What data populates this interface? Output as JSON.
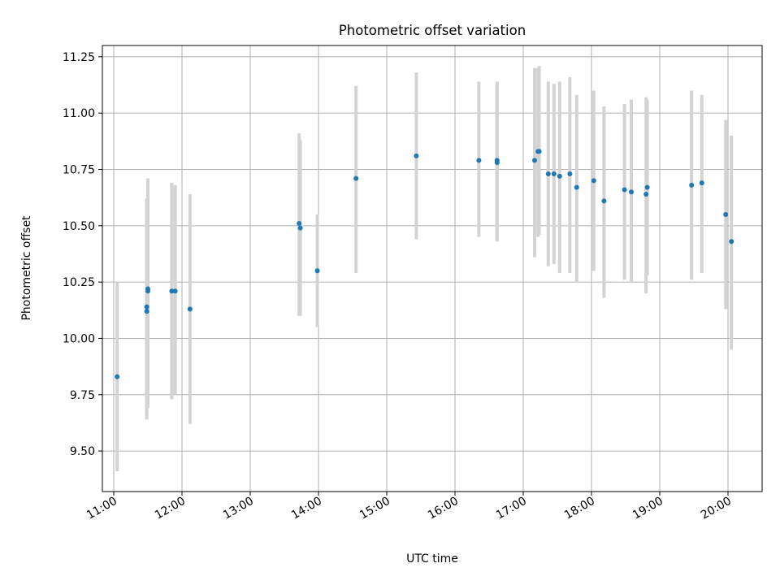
{
  "chart_data": {
    "type": "scatter",
    "title": "Photometric offset variation",
    "xlabel": "UTC time",
    "ylabel": "Photometric offset",
    "x_axis": "time",
    "xlim": [
      "10:50",
      "20:30"
    ],
    "ylim": [
      9.32,
      11.3
    ],
    "x_ticks": [
      "11:00",
      "12:00",
      "13:00",
      "14:00",
      "15:00",
      "16:00",
      "17:00",
      "18:00",
      "19:00",
      "20:00"
    ],
    "y_ticks": [
      "9.50",
      "9.75",
      "10.00",
      "10.25",
      "10.50",
      "10.75",
      "11.00",
      "11.25"
    ],
    "grid": true,
    "colors": {
      "point": "#1f77b4",
      "error_bar": "#d3d3d3",
      "grid": "#b0b0b0"
    },
    "series": [
      {
        "points": [
          {
            "x": "11:03",
            "y": 9.83,
            "err": [
              9.41,
              10.25
            ]
          },
          {
            "x": "11:29",
            "y": 10.12,
            "err": [
              9.64,
              10.62
            ]
          },
          {
            "x": "11:29",
            "y": 10.14,
            "err": [
              9.66,
              10.6
            ]
          },
          {
            "x": "11:30",
            "y": 10.22,
            "err": [
              9.69,
              10.71
            ]
          },
          {
            "x": "11:30",
            "y": 10.21,
            "err": [
              9.72,
              10.7
            ]
          },
          {
            "x": "11:51",
            "y": 10.21,
            "err": [
              9.73,
              10.69
            ]
          },
          {
            "x": "11:54",
            "y": 10.21,
            "err": [
              9.75,
              10.68
            ]
          },
          {
            "x": "12:07",
            "y": 10.13,
            "err": [
              9.62,
              10.64
            ]
          },
          {
            "x": "13:43",
            "y": 10.51,
            "err": [
              10.1,
              10.91
            ]
          },
          {
            "x": "13:44",
            "y": 10.49,
            "err": [
              10.1,
              10.88
            ]
          },
          {
            "x": "13:59",
            "y": 10.3,
            "err": [
              10.05,
              10.55
            ]
          },
          {
            "x": "14:33",
            "y": 10.71,
            "err": [
              10.29,
              11.12
            ]
          },
          {
            "x": "15:26",
            "y": 10.81,
            "err": [
              10.44,
              11.18
            ]
          },
          {
            "x": "16:21",
            "y": 10.79,
            "err": [
              10.45,
              11.14
            ]
          },
          {
            "x": "16:37",
            "y": 10.79,
            "err": [
              10.44,
              11.14
            ]
          },
          {
            "x": "16:37",
            "y": 10.78,
            "err": [
              10.43,
              11.13
            ]
          },
          {
            "x": "17:10",
            "y": 10.79,
            "err": [
              10.36,
              11.2
            ]
          },
          {
            "x": "17:13",
            "y": 10.83,
            "err": [
              10.45,
              11.2
            ]
          },
          {
            "x": "17:14",
            "y": 10.83,
            "err": [
              10.46,
              11.21
            ]
          },
          {
            "x": "17:22",
            "y": 10.73,
            "err": [
              10.32,
              11.14
            ]
          },
          {
            "x": "17:27",
            "y": 10.73,
            "err": [
              10.33,
              11.13
            ]
          },
          {
            "x": "17:32",
            "y": 10.72,
            "err": [
              10.29,
              11.14
            ]
          },
          {
            "x": "17:41",
            "y": 10.73,
            "err": [
              10.29,
              11.16
            ]
          },
          {
            "x": "17:47",
            "y": 10.67,
            "err": [
              10.25,
              11.08
            ]
          },
          {
            "x": "18:02",
            "y": 10.7,
            "err": [
              10.3,
              11.1
            ]
          },
          {
            "x": "18:11",
            "y": 10.61,
            "err": [
              10.18,
              11.03
            ]
          },
          {
            "x": "18:29",
            "y": 10.66,
            "err": [
              10.26,
              11.04
            ]
          },
          {
            "x": "18:35",
            "y": 10.65,
            "err": [
              10.25,
              11.06
            ]
          },
          {
            "x": "18:48",
            "y": 10.64,
            "err": [
              10.2,
              11.07
            ]
          },
          {
            "x": "18:49",
            "y": 10.67,
            "err": [
              10.28,
              11.06
            ]
          },
          {
            "x": "19:28",
            "y": 10.68,
            "err": [
              10.26,
              11.1
            ]
          },
          {
            "x": "19:37",
            "y": 10.69,
            "err": [
              10.29,
              11.08
            ]
          },
          {
            "x": "19:58",
            "y": 10.55,
            "err": [
              10.13,
              10.97
            ]
          },
          {
            "x": "20:03",
            "y": 10.43,
            "err": [
              9.95,
              10.9
            ]
          }
        ]
      }
    ]
  }
}
